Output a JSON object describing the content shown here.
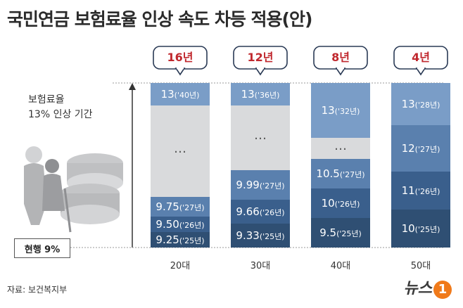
{
  "title": "국민연금 보험료율 인상 속도 차등 적용(안)",
  "axis_label_line1": "보험료율",
  "axis_label_line2": "13% 인상 기간",
  "current_rate_label": "현행 9%",
  "source": "자료: 보건복지부",
  "logo": {
    "text": "뉴스",
    "mark": "1"
  },
  "colors": {
    "badge_text": "#c0282e",
    "gap": "#d9dadc",
    "bar_text": "#ffffff"
  },
  "chart_data": {
    "type": "bar",
    "title": "국민연금 보험료율 인상 속도 차등 적용(안)",
    "ylabel": "보험료율 13% 인상 기간",
    "baseline": "현행 9%",
    "categories": [
      "20대",
      "30대",
      "40대",
      "50대"
    ],
    "durations": [
      "16년",
      "12년",
      "8년",
      "4년"
    ],
    "columns": [
      {
        "category": "20대",
        "duration": "16년",
        "segments": [
          {
            "rate": "9.25",
            "year": "('25년)",
            "color": "#2f4f73"
          },
          {
            "rate": "9.50",
            "year": "('26년)",
            "color": "#3a5f8c"
          },
          {
            "rate": "9.75",
            "year": "('27년)",
            "color": "#5a80ae"
          },
          {
            "gap": true,
            "label": "…"
          },
          {
            "rate": "13",
            "year": "('40년)",
            "color": "#7a9dc7"
          }
        ]
      },
      {
        "category": "30대",
        "duration": "12년",
        "segments": [
          {
            "rate": "9.33",
            "year": "('25년)",
            "color": "#2f4f73"
          },
          {
            "rate": "9.66",
            "year": "('26년)",
            "color": "#3a5f8c"
          },
          {
            "rate": "9.99",
            "year": "('27년)",
            "color": "#5a80ae"
          },
          {
            "gap": true,
            "label": "…"
          },
          {
            "rate": "13",
            "year": "('36년)",
            "color": "#7a9dc7"
          }
        ]
      },
      {
        "category": "40대",
        "duration": "8년",
        "segments": [
          {
            "rate": "9.5",
            "year": "('25년)",
            "color": "#2f4f73"
          },
          {
            "rate": "10",
            "year": "('26년)",
            "color": "#3a5f8c"
          },
          {
            "rate": "10.5",
            "year": "('27년)",
            "color": "#5a80ae"
          },
          {
            "gap": true,
            "label": "…"
          },
          {
            "rate": "13",
            "year": "('32년)",
            "color": "#7a9dc7"
          }
        ]
      },
      {
        "category": "50대",
        "duration": "4년",
        "segments": [
          {
            "rate": "10",
            "year": "('25년)",
            "color": "#2f4f73"
          },
          {
            "rate": "11",
            "year": "('26년)",
            "color": "#3a5f8c"
          },
          {
            "rate": "12",
            "year": "('27년)",
            "color": "#5a80ae"
          },
          {
            "rate": "13",
            "year": "('28년)",
            "color": "#7a9dc7"
          }
        ]
      }
    ]
  }
}
